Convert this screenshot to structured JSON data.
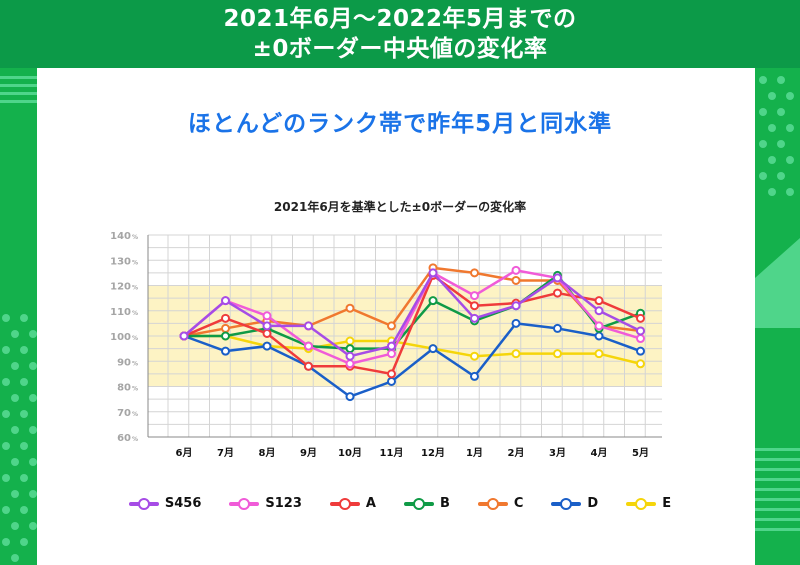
{
  "header": {
    "line1": "2021年6月～2022年5月までの",
    "line2": "±0ボーダー中央値の変化率"
  },
  "subtitle": "ほとんどのランク帯で昨年5月と同水準",
  "colors": {
    "S456": "#a64ce6",
    "S123": "#f05bd8",
    "A": "#ef3b3b",
    "B": "#0f9a46",
    "C": "#f0782f",
    "D": "#1a5fc8",
    "E": "#f5d50a",
    "band": "#fdf3c4",
    "background": "#14b14c",
    "header": "#0c9a48",
    "subtitle": "#1a73e8"
  },
  "chart_data": {
    "type": "line",
    "title": "2021年6月を基準とした±0ボーダーの変化率",
    "categories": [
      "6月",
      "7月",
      "8月",
      "9月",
      "10月",
      "11月",
      "12月",
      "1月",
      "2月",
      "3月",
      "4月",
      "5月"
    ],
    "yticks": [
      "140",
      "130",
      "120",
      "110",
      "100",
      "90",
      "80",
      "70",
      "60"
    ],
    "yunit": "%",
    "ylim": [
      60,
      140
    ],
    "band": [
      80,
      120
    ],
    "grid": true,
    "legend_position": "bottom",
    "series": [
      {
        "name": "S456",
        "values": [
          100,
          114,
          104,
          104,
          92,
          96,
          125,
          107,
          112,
          123,
          110,
          102
        ]
      },
      {
        "name": "S123",
        "values": [
          100,
          114,
          108,
          96,
          89,
          93,
          125,
          116,
          126,
          123,
          104,
          99
        ]
      },
      {
        "name": "A",
        "values": [
          100,
          107,
          101,
          88,
          88,
          85,
          124,
          112,
          113,
          117,
          114,
          107
        ]
      },
      {
        "name": "B",
        "values": [
          100,
          100,
          103,
          96,
          95,
          95,
          114,
          106,
          112,
          124,
          103,
          109
        ]
      },
      {
        "name": "C",
        "values": [
          100,
          103,
          106,
          104,
          111,
          104,
          127,
          125,
          122,
          122,
          104,
          102
        ]
      },
      {
        "name": "D",
        "values": [
          100,
          94,
          96,
          88,
          76,
          82,
          95,
          84,
          105,
          103,
          100,
          94
        ]
      },
      {
        "name": "E",
        "values": [
          100,
          100,
          96,
          95,
          98,
          98,
          95,
          92,
          93,
          93,
          93,
          89
        ]
      }
    ]
  }
}
